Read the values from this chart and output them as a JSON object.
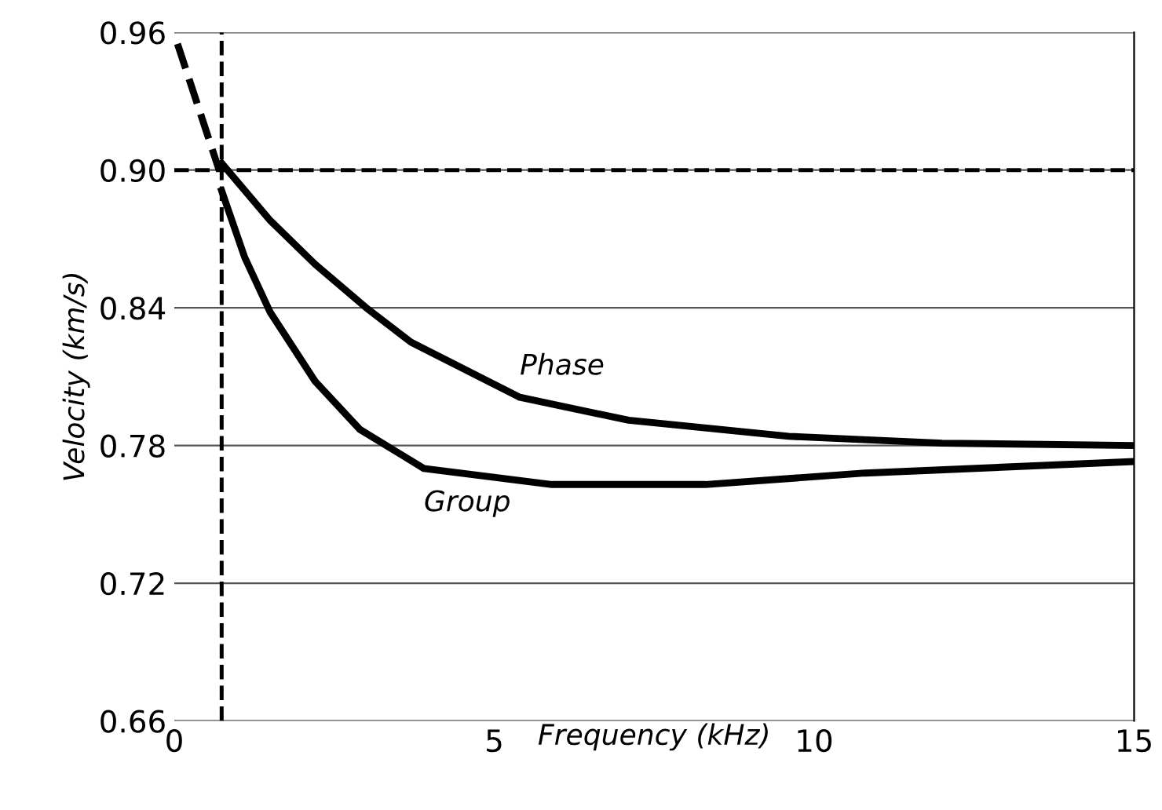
{
  "chart_data": {
    "type": "line",
    "xlabel": "Frequency (kHz)",
    "ylabel": "Velocity (km/s)",
    "xlim": [
      0,
      15
    ],
    "ylim": [
      0.66,
      0.96
    ],
    "xticks": [
      0,
      5,
      10,
      15
    ],
    "yticks": [
      {
        "value": 0.66,
        "label": "0.66"
      },
      {
        "value": 0.72,
        "label": "0.72"
      },
      {
        "value": 0.78,
        "label": "0.78"
      },
      {
        "value": 0.84,
        "label": "0.84"
      },
      {
        "value": 0.9,
        "label": "0.90"
      },
      {
        "value": 0.96,
        "label": "0.96"
      }
    ],
    "grid": "y",
    "line_style": "solid",
    "marker": "none",
    "series": [
      {
        "name": "Phase",
        "color": "#000000",
        "x": [
          0.74,
          1.5,
          2.2,
          3.0,
          3.7,
          5.4,
          7.1,
          9.6,
          12.0,
          15
        ],
        "values": [
          0.903,
          0.878,
          0.859,
          0.84,
          0.825,
          0.801,
          0.791,
          0.784,
          0.781,
          0.78
        ]
      },
      {
        "name": "Group",
        "color": "#000000",
        "x": [
          0.74,
          1.1,
          1.5,
          2.2,
          2.9,
          3.9,
          5.9,
          8.3,
          10.8,
          15
        ],
        "values": [
          0.891,
          0.862,
          0.838,
          0.808,
          0.787,
          0.77,
          0.763,
          0.763,
          0.768,
          0.773
        ]
      },
      {
        "color": "#000000",
        "line_style": "dashed",
        "x": [
          0.05,
          0.7
        ],
        "values": [
          0.955,
          0.9
        ]
      }
    ],
    "ref_lines": [
      {
        "axis": "y",
        "value": 0.9,
        "label": null,
        "line_style": "dashed",
        "color": "#000000"
      },
      {
        "axis": "x",
        "value": 0.74,
        "label": null,
        "line_style": "dashed",
        "color": "#000000"
      }
    ],
    "legend": false
  }
}
